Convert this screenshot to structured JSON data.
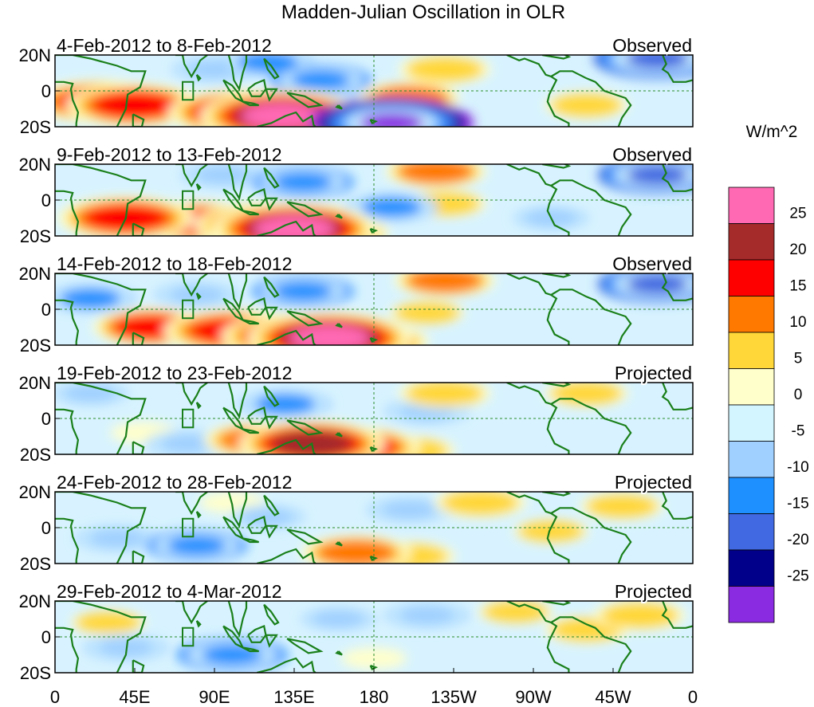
{
  "chart_data": {
    "type": "heatmap",
    "title": "Madden-Julian Oscillation in OLR",
    "colorbar_unit": "W/m^2",
    "colorbar": {
      "levels": [
        25,
        20,
        15,
        10,
        5,
        0,
        -5,
        -10,
        -15,
        -20,
        -25
      ],
      "colors": [
        "#ff69b4",
        "#a52a2a",
        "#ff0000",
        "#ff7800",
        "#ffd738",
        "#ffffcc",
        "#d2f5ff",
        "#a0d0ff",
        "#1e90ff",
        "#4169e1",
        "#00008b",
        "#8a2be2"
      ]
    },
    "x_ticks": [
      "0",
      "45E",
      "90E",
      "135E",
      "180",
      "135W",
      "90W",
      "45W",
      "0"
    ],
    "y_ticks": [
      "20N",
      "0",
      "20S"
    ],
    "lon_range": [
      0,
      360
    ],
    "lat_range": [
      -20,
      20
    ],
    "coastline_color": "#1a7f1a",
    "reference_box": {
      "lon": [
        72,
        78
      ],
      "lat": [
        -5,
        5
      ]
    },
    "panels": [
      {
        "dates": "4-Feb-2012 to 8-Feb-2012",
        "status": "Observed",
        "anomalies": [
          {
            "lon": 25,
            "lat": -6,
            "value": 20
          },
          {
            "lon": 45,
            "lat": -8,
            "value": 20
          },
          {
            "lon": 105,
            "lat": -12,
            "value": 22
          },
          {
            "lon": 128,
            "lat": -14,
            "value": 26
          },
          {
            "lon": 160,
            "lat": -18,
            "value": -20
          },
          {
            "lon": 190,
            "lat": -18,
            "value": -26
          },
          {
            "lon": 200,
            "lat": -4,
            "value": 12
          },
          {
            "lon": 220,
            "lat": 12,
            "value": 10
          },
          {
            "lon": 150,
            "lat": 6,
            "value": -12
          },
          {
            "lon": 120,
            "lat": 16,
            "value": -10
          },
          {
            "lon": 300,
            "lat": -8,
            "value": 8
          },
          {
            "lon": 340,
            "lat": 18,
            "value": -18
          },
          {
            "lon": 90,
            "lat": 12,
            "value": -8
          }
        ]
      },
      {
        "dates": "9-Feb-2012 to 13-Feb-2012",
        "status": "Observed",
        "anomalies": [
          {
            "lon": 40,
            "lat": -10,
            "value": 20
          },
          {
            "lon": 80,
            "lat": -12,
            "value": 18
          },
          {
            "lon": 120,
            "lat": -14,
            "value": 22
          },
          {
            "lon": 135,
            "lat": -16,
            "value": 26
          },
          {
            "lon": 160,
            "lat": -18,
            "value": 12
          },
          {
            "lon": 190,
            "lat": -4,
            "value": -10
          },
          {
            "lon": 220,
            "lat": -2,
            "value": 8
          },
          {
            "lon": 215,
            "lat": 16,
            "value": 12
          },
          {
            "lon": 140,
            "lat": 10,
            "value": -12
          },
          {
            "lon": 95,
            "lat": 14,
            "value": -8
          },
          {
            "lon": 340,
            "lat": 14,
            "value": -16
          },
          {
            "lon": 280,
            "lat": -10,
            "value": -6
          }
        ]
      },
      {
        "dates": "14-Feb-2012 to 18-Feb-2012",
        "status": "Observed",
        "anomalies": [
          {
            "lon": 55,
            "lat": -10,
            "value": 16
          },
          {
            "lon": 100,
            "lat": -12,
            "value": 20
          },
          {
            "lon": 135,
            "lat": -15,
            "value": 22
          },
          {
            "lon": 155,
            "lat": -16,
            "value": 26
          },
          {
            "lon": 180,
            "lat": -18,
            "value": 14
          },
          {
            "lon": 210,
            "lat": -2,
            "value": 6
          },
          {
            "lon": 220,
            "lat": 16,
            "value": 12
          },
          {
            "lon": 20,
            "lat": 6,
            "value": -10
          },
          {
            "lon": 80,
            "lat": 8,
            "value": -8
          },
          {
            "lon": 140,
            "lat": 10,
            "value": -12
          },
          {
            "lon": 340,
            "lat": 14,
            "value": -16
          }
        ]
      },
      {
        "dates": "19-Feb-2012 to 23-Feb-2012",
        "status": "Projected",
        "anomalies": [
          {
            "lon": 115,
            "lat": -12,
            "value": 14
          },
          {
            "lon": 145,
            "lat": -14,
            "value": 22
          },
          {
            "lon": 170,
            "lat": -16,
            "value": 18
          },
          {
            "lon": 200,
            "lat": -18,
            "value": 10
          },
          {
            "lon": 220,
            "lat": 14,
            "value": 10
          },
          {
            "lon": 300,
            "lat": 14,
            "value": 8
          },
          {
            "lon": 50,
            "lat": -8,
            "value": 4
          },
          {
            "lon": 75,
            "lat": -14,
            "value": -8
          },
          {
            "lon": 130,
            "lat": 8,
            "value": -10
          },
          {
            "lon": 210,
            "lat": 4,
            "value": -8
          },
          {
            "lon": 20,
            "lat": 14,
            "value": -6
          }
        ]
      },
      {
        "dates": "24-Feb-2012 to 28-Feb-2012",
        "status": "Projected",
        "anomalies": [
          {
            "lon": 170,
            "lat": -14,
            "value": 14
          },
          {
            "lon": 200,
            "lat": -16,
            "value": 10
          },
          {
            "lon": 240,
            "lat": 14,
            "value": 10
          },
          {
            "lon": 320,
            "lat": 12,
            "value": 8
          },
          {
            "lon": 280,
            "lat": -2,
            "value": 6
          },
          {
            "lon": 80,
            "lat": -10,
            "value": -12
          },
          {
            "lon": 35,
            "lat": -6,
            "value": -8
          },
          {
            "lon": 120,
            "lat": 6,
            "value": -6
          },
          {
            "lon": 200,
            "lat": 10,
            "value": -8
          },
          {
            "lon": 100,
            "lat": 14,
            "value": 4
          }
        ]
      },
      {
        "dates": "29-Feb-2012 to 4-Mar-2012",
        "status": "Projected",
        "anomalies": [
          {
            "lon": 100,
            "lat": -10,
            "value": -14
          },
          {
            "lon": 40,
            "lat": -6,
            "value": -8
          },
          {
            "lon": 160,
            "lat": 10,
            "value": -6
          },
          {
            "lon": 210,
            "lat": 12,
            "value": -8
          },
          {
            "lon": 260,
            "lat": 14,
            "value": 6
          },
          {
            "lon": 300,
            "lat": 4,
            "value": 8
          },
          {
            "lon": 330,
            "lat": 12,
            "value": 10
          },
          {
            "lon": 30,
            "lat": 8,
            "value": 6
          },
          {
            "lon": 180,
            "lat": -12,
            "value": 4
          }
        ]
      }
    ]
  }
}
